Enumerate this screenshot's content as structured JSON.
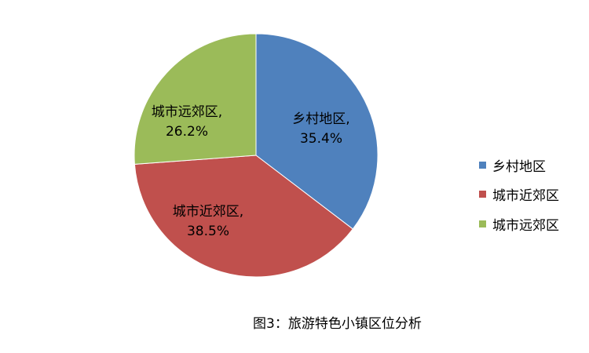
{
  "chart_data": {
    "type": "pie",
    "title": "",
    "start": "top, clockwise",
    "legend_position": "right",
    "slices": [
      {
        "name": "乡村地区",
        "value": 35.4,
        "label": "35.4%",
        "color": "#4F81BD"
      },
      {
        "name": "城市近郊区",
        "value": 38.5,
        "label": "38.5%",
        "color": "#C0504D"
      },
      {
        "name": "城市远郊区",
        "value": 26.2,
        "label": "26.2%",
        "color": "#9BBB59"
      }
    ]
  },
  "caption": "图3：旅游特色小镇区位分析"
}
